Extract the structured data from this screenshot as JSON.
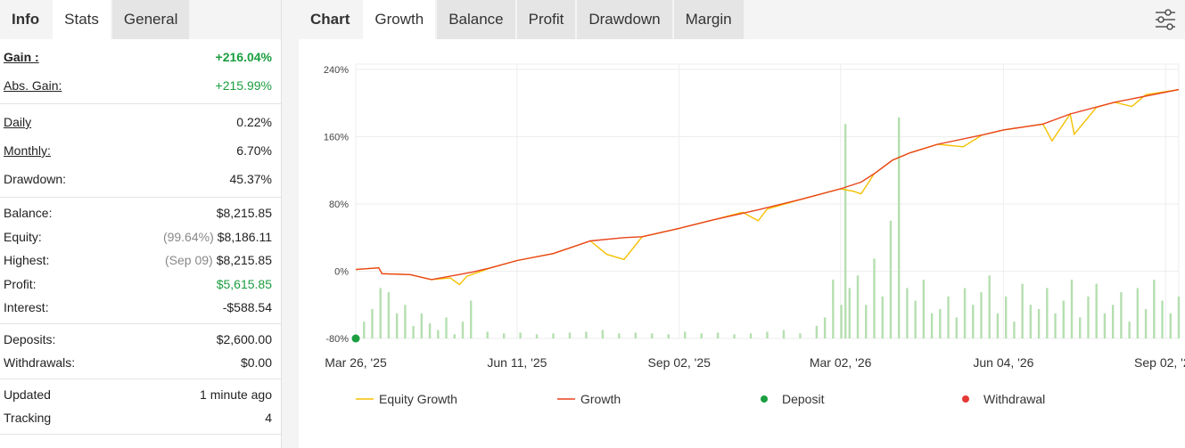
{
  "left_tabs": [
    "Info",
    "Stats",
    "General"
  ],
  "stats": [
    [
      {
        "label": "Gain :",
        "value": "+216.04%",
        "color": "#1a9e3f"
      },
      {
        "label": "Abs. Gain:",
        "value": "+215.99%",
        "color": "#1a9e3f"
      }
    ],
    [
      {
        "label": "Daily",
        "value": "0.22%"
      },
      {
        "label": "Monthly:",
        "value": "6.70%"
      },
      {
        "label": "Drawdown:",
        "value": "45.37%"
      }
    ],
    [
      {
        "label": "Balance:",
        "value": "$8,215.85"
      },
      {
        "label": "Equity:",
        "note": "(99.64%)",
        "value": "$8,186.11"
      },
      {
        "label": "Highest:",
        "note": "(Sep 09)",
        "value": "$8,215.85"
      },
      {
        "label": "Profit:",
        "value": "$5,615.85",
        "color": "#1a9e3f"
      },
      {
        "label": "Interest:",
        "value": "-$588.54"
      }
    ],
    [
      {
        "label": "Deposits:",
        "value": "$2,600.00"
      },
      {
        "label": "Withdrawals:",
        "value": "$0.00"
      }
    ],
    [
      {
        "label": "Updated",
        "value": "1 minute ago"
      },
      {
        "label": "Tracking",
        "value": "4"
      }
    ]
  ],
  "right_tabs": [
    "Chart",
    "Growth",
    "Balance",
    "Profit",
    "Drawdown",
    "Margin"
  ],
  "chart_data": {
    "type": "line",
    "ylim": [
      -80,
      240
    ],
    "yticks": [
      {
        "value": 240,
        "label": "240%"
      },
      {
        "value": 160,
        "label": "160%"
      },
      {
        "value": 80,
        "label": "80%"
      },
      {
        "value": 0,
        "label": "0%"
      },
      {
        "value": -80,
        "label": "-80%"
      }
    ],
    "xlim": [
      0,
      100
    ],
    "xticks": [
      {
        "value": 0,
        "label": "Mar 26, '25"
      },
      {
        "value": 19.6,
        "label": "Jun 11, '25"
      },
      {
        "value": 39.3,
        "label": "Sep 02, '25"
      },
      {
        "value": 58.9,
        "label": "Mar 02, '26"
      },
      {
        "value": 78.7,
        "label": "Jun 04, '26"
      },
      {
        "value": 98.4,
        "label": "Sep 02, '26"
      }
    ],
    "grid": true,
    "series": [
      {
        "name": "Equity Growth",
        "color": "#f5c000",
        "type": "line",
        "x": [
          0,
          2.8,
          3.2,
          6.6,
          9.2,
          11.5,
          12.6,
          13.5,
          16.4,
          19.6,
          24,
          28.5,
          30.5,
          32.6,
          34.8,
          39.3,
          43.4,
          47,
          48.9,
          50,
          54.3,
          58.9,
          60.5,
          61.4,
          63,
          65.2,
          67.4,
          70.7,
          73.8,
          76.1,
          78.7,
          83.5,
          84.6,
          86.8,
          87.3,
          90,
          92.2,
          94.3,
          96,
          100
        ],
        "values": [
          2,
          4,
          -3,
          -4,
          -10,
          -8,
          -16,
          -6,
          4,
          12.7,
          21,
          36,
          20,
          14,
          41,
          51,
          61,
          70,
          60,
          74,
          86,
          98,
          95,
          92,
          116,
          132,
          141,
          151,
          148,
          162,
          168,
          175,
          155,
          187,
          163,
          195,
          201,
          196,
          210,
          216
        ]
      },
      {
        "name": "Growth",
        "color": "#e8441c",
        "type": "line",
        "x": [
          0,
          2.8,
          3.2,
          6.6,
          9.2,
          12,
          14.2,
          16.4,
          19.6,
          24,
          28.5,
          32.6,
          34.8,
          39.3,
          43.4,
          48.9,
          54.3,
          58.9,
          61.4,
          63,
          65.2,
          67.4,
          70.7,
          76.1,
          78.7,
          83.5,
          86.8,
          92.2,
          100
        ],
        "values": [
          2,
          4,
          -3,
          -4,
          -10,
          -5,
          -1,
          4,
          12.7,
          21,
          36,
          40,
          41,
          51,
          61,
          73,
          86,
          98,
          106,
          116,
          132,
          141,
          151,
          162,
          168,
          175,
          187,
          201,
          216
        ]
      },
      {
        "name": "Deposit",
        "color": "#1a9e3f",
        "type": "scatter",
        "x": [
          0
        ],
        "values": [
          -80
        ]
      },
      {
        "name": "Withdrawal",
        "color": "#e53935",
        "type": "scatter",
        "x": [],
        "values": []
      }
    ],
    "bars": {
      "color": "#b5dfb0",
      "x": [
        1,
        2,
        3,
        4,
        5,
        6,
        7,
        8,
        9,
        10,
        11,
        12,
        13,
        14,
        16,
        18,
        20,
        22,
        24,
        26,
        28,
        30,
        32,
        34,
        36,
        38,
        40,
        42,
        44,
        46,
        48,
        50,
        52,
        54,
        56,
        57,
        58,
        59,
        59.5,
        60,
        61,
        62,
        63,
        64,
        65,
        66,
        67,
        68,
        69,
        70,
        71,
        72,
        73,
        74,
        75,
        76,
        77,
        78,
        79,
        80,
        81,
        82,
        83,
        84,
        85,
        86,
        87,
        88,
        89,
        90,
        91,
        92,
        93,
        94,
        95,
        96,
        97,
        98,
        99,
        100
      ],
      "values": [
        -60,
        -45,
        -20,
        -25,
        -50,
        -40,
        -65,
        -50,
        -62,
        -70,
        -55,
        -75,
        -60,
        -35,
        -72,
        -74,
        -73,
        -75,
        -74,
        -73,
        -72,
        -70,
        -74,
        -73,
        -74,
        -75,
        -72,
        -74,
        -73,
        -75,
        -74,
        -72,
        -70,
        -74,
        -65,
        -55,
        -10,
        -40,
        175,
        -20,
        -5,
        -40,
        15,
        -30,
        60,
        183,
        -20,
        -35,
        -10,
        -50,
        -45,
        -30,
        -55,
        -20,
        -40,
        -25,
        -5,
        -50,
        -30,
        -60,
        -15,
        -40,
        -45,
        -20,
        -50,
        -35,
        -10,
        -55,
        -30,
        -15,
        -50,
        -40,
        -25,
        -60,
        -20,
        -45,
        -10,
        -35,
        -50,
        -30
      ]
    }
  }
}
